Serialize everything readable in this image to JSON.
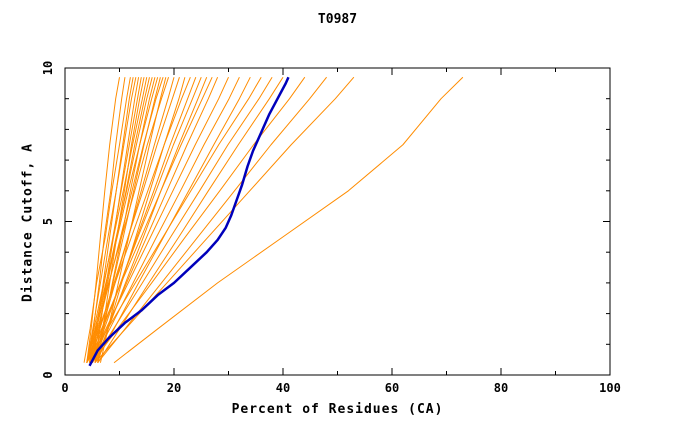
{
  "title": "T0987",
  "chart_data": {
    "type": "line",
    "title": "T0987",
    "xlabel": "Percent of Residues (CA)",
    "ylabel": "Distance Cutoff, A",
    "xlim": [
      0,
      100
    ],
    "ylim": [
      0,
      10
    ],
    "x_major_ticks": [
      0,
      20,
      40,
      60,
      80,
      100
    ],
    "x_minor_step": 10,
    "y_major_ticks": [
      0,
      5,
      10
    ],
    "y_minor_step": 1,
    "legend": "off",
    "grid": "off",
    "colors": {
      "model_lines": "#ff8c00",
      "reference_line": "#0000bb",
      "axis": "#000000",
      "background": "#ffffff"
    },
    "y_grid": [
      0.4,
      1.5,
      3,
      4.5,
      6,
      7.5,
      9,
      9.7
    ],
    "orange_series_x": [
      [
        4,
        4.8,
        5.7,
        6.5,
        7.3,
        8.2,
        9.3,
        10
      ],
      [
        4.5,
        5.2,
        6.3,
        7.2,
        8.4,
        9.3,
        10.4,
        11
      ],
      [
        3.5,
        4.6,
        5.8,
        7.4,
        8.6,
        10,
        11.3,
        12
      ],
      [
        5,
        5.9,
        7,
        8.2,
        9.4,
        10.6,
        11.8,
        12.5
      ],
      [
        4,
        5.1,
        6.5,
        7.9,
        9.4,
        10.8,
        12.2,
        13
      ],
      [
        5.5,
        6.4,
        7.6,
        8.9,
        10.2,
        11.5,
        12.8,
        13.5
      ],
      [
        4.5,
        5.6,
        7.2,
        8.8,
        10.3,
        11.8,
        13.3,
        14
      ],
      [
        6,
        6.9,
        8.2,
        9.5,
        10.9,
        12.2,
        13.7,
        14.5
      ],
      [
        4,
        5.3,
        7.1,
        8.9,
        10.7,
        12.4,
        14.2,
        15
      ],
      [
        5,
        6.2,
        7.8,
        9.5,
        11.2,
        12.8,
        14.6,
        15.5
      ],
      [
        4.5,
        5.8,
        7.6,
        9.4,
        11.3,
        13.1,
        15,
        16
      ],
      [
        6,
        7.1,
        8.7,
        10.4,
        12,
        13.7,
        15.5,
        16.5
      ],
      [
        4,
        5.5,
        7.5,
        9.6,
        11.6,
        13.7,
        15.9,
        17
      ],
      [
        5.5,
        6.9,
        8.8,
        10.7,
        12.6,
        14.5,
        16.5,
        17.5
      ],
      [
        4.5,
        6,
        8.1,
        10.2,
        12.3,
        14.4,
        16.7,
        18
      ],
      [
        6.5,
        7.9,
        9.8,
        11.7,
        13.6,
        15.5,
        17.5,
        18.5
      ],
      [
        4,
        5.7,
        8,
        10.4,
        12.8,
        15.1,
        17.7,
        19
      ],
      [
        5,
        6.8,
        9.2,
        11.6,
        14,
        16.4,
        18.9,
        20
      ],
      [
        4.5,
        6.4,
        9,
        11.6,
        14.3,
        16.9,
        19.7,
        21
      ],
      [
        6,
        7.9,
        10.4,
        13,
        15.6,
        18.2,
        20.9,
        22
      ],
      [
        4,
        6.2,
        9.2,
        12.2,
        15.2,
        18.2,
        21.4,
        23
      ],
      [
        5,
        7.2,
        10.2,
        13.2,
        16.3,
        19.3,
        22.5,
        24
      ],
      [
        4.5,
        6.9,
        10.2,
        13.4,
        16.7,
        19.9,
        23.4,
        25
      ],
      [
        5.5,
        7.9,
        11.1,
        14.4,
        17.6,
        20.9,
        24.4,
        26
      ],
      [
        4,
        6.7,
        10.3,
        14,
        17.6,
        21.3,
        25.2,
        27
      ],
      [
        5,
        7.7,
        11.3,
        15,
        18.7,
        22.4,
        26.3,
        28
      ],
      [
        4.5,
        7.5,
        11.6,
        15.7,
        19.8,
        23.9,
        28.2,
        30
      ],
      [
        5,
        8.2,
        12.5,
        16.8,
        21.2,
        25.5,
        30.1,
        32
      ],
      [
        5.5,
        9,
        13.5,
        18.1,
        22.7,
        27.3,
        32,
        34
      ],
      [
        4,
        7.8,
        12.9,
        18,
        23.1,
        28.2,
        33.7,
        36
      ],
      [
        5,
        8.9,
        14.2,
        19.4,
        24.7,
        29.9,
        35.6,
        38
      ],
      [
        6,
        10,
        15.4,
        20.9,
        26.3,
        31.8,
        37.5,
        40
      ],
      [
        5,
        9.6,
        15.9,
        22.1,
        28.4,
        34.6,
        41.2,
        44
      ],
      [
        6,
        11,
        17.7,
        24.4,
        31.1,
        37.8,
        44.9,
        48
      ],
      [
        5.5,
        11.1,
        18.7,
        26.3,
        33.9,
        41.5,
        49.6,
        53
      ],
      [
        9,
        17,
        28,
        40,
        52,
        62,
        69,
        73
      ]
    ],
    "blue_series": [
      [
        4.5,
        0.3
      ],
      [
        6,
        0.8
      ],
      [
        8,
        1.2
      ],
      [
        11,
        1.7
      ],
      [
        14,
        2.1
      ],
      [
        17,
        2.6
      ],
      [
        20,
        3.0
      ],
      [
        23,
        3.5
      ],
      [
        26,
        4.0
      ],
      [
        28,
        4.4
      ],
      [
        29.5,
        4.8
      ],
      [
        30.5,
        5.2
      ],
      [
        31.5,
        5.7
      ],
      [
        32.5,
        6.2
      ],
      [
        33.5,
        6.8
      ],
      [
        34.5,
        7.3
      ],
      [
        36,
        7.9
      ],
      [
        37.5,
        8.5
      ],
      [
        39,
        9.0
      ],
      [
        40.5,
        9.5
      ],
      [
        41,
        9.7
      ]
    ]
  }
}
